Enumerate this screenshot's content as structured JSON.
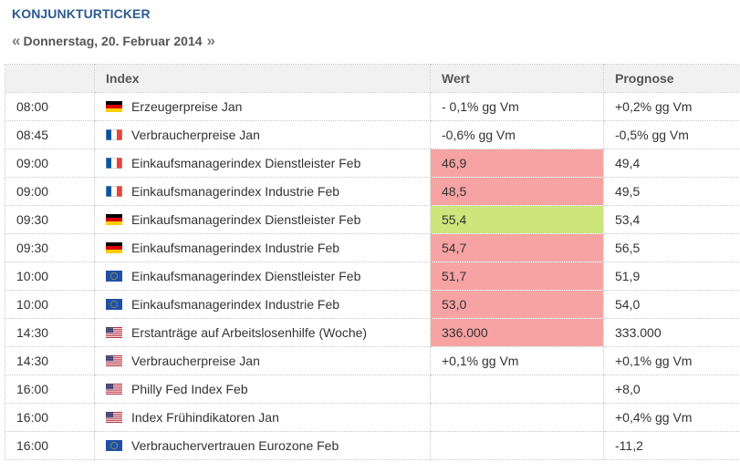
{
  "header": {
    "title": "KONJUNKTURTICKER",
    "prev_arrow": "«",
    "date": "Donnerstag, 20. Februar 2014",
    "next_arrow": "»"
  },
  "table": {
    "columns": [
      "",
      "Index",
      "Wert",
      "Prognose"
    ],
    "rows": [
      {
        "time": "08:00",
        "country": "de",
        "flag_icon": "germany-flag-icon",
        "index": "Erzeugerpreise Jan",
        "wert": "- 0,1% gg Vm",
        "prognose": "+0,2% gg Vm",
        "status": "neutral"
      },
      {
        "time": "08:45",
        "country": "fr",
        "flag_icon": "france-flag-icon",
        "index": "Verbraucherpreise Jan",
        "wert": "-0,6% gg Vm",
        "prognose": "-0,5% gg Vm",
        "status": "neutral"
      },
      {
        "time": "09:00",
        "country": "fr",
        "flag_icon": "france-flag-icon",
        "index": "Einkaufsmanagerindex Dienstleister Feb",
        "wert": "46,9",
        "prognose": "49,4",
        "status": "bad"
      },
      {
        "time": "09:00",
        "country": "fr",
        "flag_icon": "france-flag-icon",
        "index": "Einkaufsmanagerindex Industrie Feb",
        "wert": "48,5",
        "prognose": "49,5",
        "status": "bad"
      },
      {
        "time": "09:30",
        "country": "de",
        "flag_icon": "germany-flag-icon",
        "index": "Einkaufsmanagerindex Dienstleister Feb",
        "wert": "55,4",
        "prognose": "53,4",
        "status": "good"
      },
      {
        "time": "09:30",
        "country": "de",
        "flag_icon": "germany-flag-icon",
        "index": "Einkaufsmanagerindex Industrie Feb",
        "wert": "54,7",
        "prognose": "56,5",
        "status": "bad"
      },
      {
        "time": "10:00",
        "country": "eu",
        "flag_icon": "eu-flag-icon",
        "index": "Einkaufsmanagerindex Dienstleister Feb",
        "wert": "51,7",
        "prognose": "51,9",
        "status": "bad"
      },
      {
        "time": "10:00",
        "country": "eu",
        "flag_icon": "eu-flag-icon",
        "index": "Einkaufsmanagerindex Industrie Feb",
        "wert": "53,0",
        "prognose": "54,0",
        "status": "bad"
      },
      {
        "time": "14:30",
        "country": "us",
        "flag_icon": "usa-flag-icon",
        "index": "Erstanträge auf Arbeitslosenhilfe (Woche)",
        "wert": "336.000",
        "prognose": "333.000",
        "status": "bad"
      },
      {
        "time": "14:30",
        "country": "us",
        "flag_icon": "usa-flag-icon",
        "index": "Verbraucherpreise Jan",
        "wert": "+0,1% gg Vm",
        "prognose": "+0,1% gg Vm",
        "status": "neutral"
      },
      {
        "time": "16:00",
        "country": "us",
        "flag_icon": "usa-flag-icon",
        "index": "Philly Fed Index Feb",
        "wert": "",
        "prognose": "+8,0",
        "status": "neutral"
      },
      {
        "time": "16:00",
        "country": "us",
        "flag_icon": "usa-flag-icon",
        "index": "Index Frühindikatoren Jan",
        "wert": "",
        "prognose": "+0,4% gg Vm",
        "status": "neutral"
      },
      {
        "time": "16:00",
        "country": "eu",
        "flag_icon": "eu-flag-icon",
        "index": "Verbrauchervertrauen Eurozone Feb",
        "wert": "",
        "prognose": "-11,2",
        "status": "neutral"
      }
    ]
  },
  "colors": {
    "title": "#2c5a8f",
    "bad": "#f7a3a3",
    "good": "#cde57a",
    "header_bg": "#f1f1f1"
  }
}
